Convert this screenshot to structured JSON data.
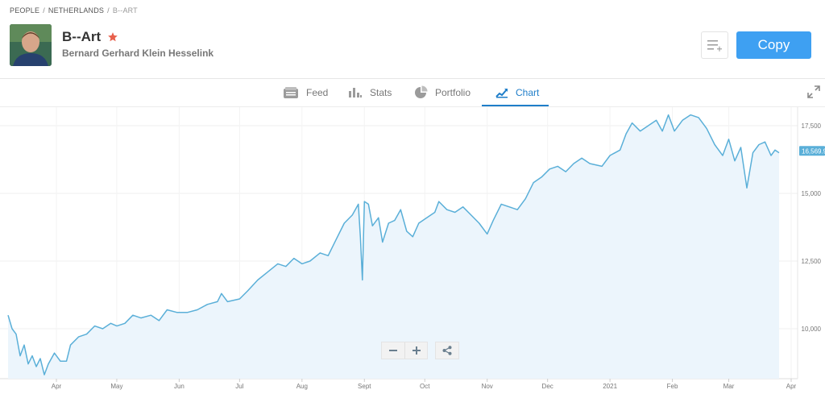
{
  "breadcrumb": [
    "PEOPLE",
    "NETHERLANDS",
    "B--ART"
  ],
  "profile": {
    "username": "B--Art",
    "full_name": "Bernard Gerhard Klein Hesselink",
    "star_color": "#e8604c"
  },
  "actions": {
    "copy_label": "Copy",
    "copy_color": "#3ea0f2"
  },
  "tabs": [
    {
      "label": "Feed",
      "icon": "feed-icon"
    },
    {
      "label": "Stats",
      "icon": "stats-icon"
    },
    {
      "label": "Portfolio",
      "icon": "portfolio-icon"
    },
    {
      "label": "Chart",
      "icon": "chart-icon",
      "active": true
    }
  ],
  "chart_data": {
    "type": "area",
    "line_color": "#5aafd8",
    "fill_color": "#ecf5fc",
    "y_ticks": [
      {
        "value": 10000,
        "label": "10,000"
      },
      {
        "value": 12500,
        "label": "12,500"
      },
      {
        "value": 15000,
        "label": "15,000"
      },
      {
        "value": 17500,
        "label": "17,500"
      }
    ],
    "current_value": {
      "value": 16569.9,
      "label": "16,569.9"
    },
    "x_ticks": [
      {
        "date": "2020-04-01",
        "label": "Apr"
      },
      {
        "date": "2020-05-01",
        "label": "May"
      },
      {
        "date": "2020-06-01",
        "label": "Jun"
      },
      {
        "date": "2020-07-01",
        "label": "Jul"
      },
      {
        "date": "2020-08-01",
        "label": "Aug"
      },
      {
        "date": "2020-09-01",
        "label": "Sept"
      },
      {
        "date": "2020-10-01",
        "label": "Oct"
      },
      {
        "date": "2020-11-01",
        "label": "Nov"
      },
      {
        "date": "2020-12-01",
        "label": "Dec"
      },
      {
        "date": "2021-01-01",
        "label": "2021"
      },
      {
        "date": "2021-02-01",
        "label": "Feb"
      },
      {
        "date": "2021-03-01",
        "label": "Mar"
      },
      {
        "date": "2021-04-01",
        "label": "Apr"
      }
    ],
    "series": [
      {
        "values": [
          [
            "2020-03-08",
            10500
          ],
          [
            "2020-03-10",
            10000
          ],
          [
            "2020-03-12",
            9800
          ],
          [
            "2020-03-14",
            9000
          ],
          [
            "2020-03-16",
            9400
          ],
          [
            "2020-03-18",
            8700
          ],
          [
            "2020-03-20",
            9000
          ],
          [
            "2020-03-22",
            8600
          ],
          [
            "2020-03-24",
            8900
          ],
          [
            "2020-03-26",
            8300
          ],
          [
            "2020-03-28",
            8700
          ],
          [
            "2020-03-31",
            9100
          ],
          [
            "2020-04-03",
            8800
          ],
          [
            "2020-04-06",
            8800
          ],
          [
            "2020-04-08",
            9400
          ],
          [
            "2020-04-12",
            9700
          ],
          [
            "2020-04-16",
            9800
          ],
          [
            "2020-04-20",
            10100
          ],
          [
            "2020-04-24",
            10000
          ],
          [
            "2020-04-28",
            10200
          ],
          [
            "2020-05-01",
            10100
          ],
          [
            "2020-05-05",
            10200
          ],
          [
            "2020-05-09",
            10500
          ],
          [
            "2020-05-13",
            10400
          ],
          [
            "2020-05-18",
            10500
          ],
          [
            "2020-05-22",
            10300
          ],
          [
            "2020-05-26",
            10700
          ],
          [
            "2020-05-31",
            10600
          ],
          [
            "2020-06-05",
            10600
          ],
          [
            "2020-06-10",
            10700
          ],
          [
            "2020-06-15",
            10900
          ],
          [
            "2020-06-20",
            11000
          ],
          [
            "2020-06-22",
            11300
          ],
          [
            "2020-06-25",
            11000
          ],
          [
            "2020-07-01",
            11100
          ],
          [
            "2020-07-05",
            11400
          ],
          [
            "2020-07-10",
            11800
          ],
          [
            "2020-07-15",
            12100
          ],
          [
            "2020-07-20",
            12400
          ],
          [
            "2020-07-24",
            12300
          ],
          [
            "2020-07-28",
            12600
          ],
          [
            "2020-08-01",
            12400
          ],
          [
            "2020-08-05",
            12500
          ],
          [
            "2020-08-10",
            12800
          ],
          [
            "2020-08-14",
            12700
          ],
          [
            "2020-08-18",
            13300
          ],
          [
            "2020-08-22",
            13900
          ],
          [
            "2020-08-26",
            14200
          ],
          [
            "2020-08-29",
            14600
          ],
          [
            "2020-08-30",
            13400
          ],
          [
            "2020-08-31",
            11800
          ],
          [
            "2020-09-01",
            14700
          ],
          [
            "2020-09-03",
            14600
          ],
          [
            "2020-09-05",
            13800
          ],
          [
            "2020-09-08",
            14100
          ],
          [
            "2020-09-10",
            13200
          ],
          [
            "2020-09-13",
            13900
          ],
          [
            "2020-09-16",
            14000
          ],
          [
            "2020-09-19",
            14400
          ],
          [
            "2020-09-22",
            13600
          ],
          [
            "2020-09-25",
            13400
          ],
          [
            "2020-09-28",
            13900
          ],
          [
            "2020-10-02",
            14100
          ],
          [
            "2020-10-06",
            14300
          ],
          [
            "2020-10-08",
            14700
          ],
          [
            "2020-10-12",
            14400
          ],
          [
            "2020-10-16",
            14300
          ],
          [
            "2020-10-20",
            14500
          ],
          [
            "2020-10-24",
            14200
          ],
          [
            "2020-10-28",
            13900
          ],
          [
            "2020-11-01",
            13500
          ],
          [
            "2020-11-04",
            14000
          ],
          [
            "2020-11-08",
            14600
          ],
          [
            "2020-11-12",
            14500
          ],
          [
            "2020-11-16",
            14400
          ],
          [
            "2020-11-20",
            14800
          ],
          [
            "2020-11-24",
            15400
          ],
          [
            "2020-11-28",
            15600
          ],
          [
            "2020-12-02",
            15900
          ],
          [
            "2020-12-06",
            16000
          ],
          [
            "2020-12-10",
            15800
          ],
          [
            "2020-12-14",
            16100
          ],
          [
            "2020-12-18",
            16300
          ],
          [
            "2020-12-22",
            16100
          ],
          [
            "2020-12-28",
            16000
          ],
          [
            "2021-01-01",
            16400
          ],
          [
            "2021-01-06",
            16600
          ],
          [
            "2021-01-09",
            17200
          ],
          [
            "2021-01-12",
            17600
          ],
          [
            "2021-01-16",
            17300
          ],
          [
            "2021-01-20",
            17500
          ],
          [
            "2021-01-24",
            17700
          ],
          [
            "2021-01-27",
            17300
          ],
          [
            "2021-01-30",
            17900
          ],
          [
            "2021-02-02",
            17300
          ],
          [
            "2021-02-06",
            17700
          ],
          [
            "2021-02-10",
            17900
          ],
          [
            "2021-02-14",
            17800
          ],
          [
            "2021-02-18",
            17400
          ],
          [
            "2021-02-22",
            16800
          ],
          [
            "2021-02-26",
            16400
          ],
          [
            "2021-03-01",
            17000
          ],
          [
            "2021-03-04",
            16200
          ],
          [
            "2021-03-07",
            16700
          ],
          [
            "2021-03-10",
            15200
          ],
          [
            "2021-03-13",
            16500
          ],
          [
            "2021-03-16",
            16800
          ],
          [
            "2021-03-19",
            16900
          ],
          [
            "2021-03-22",
            16400
          ],
          [
            "2021-03-24",
            16600
          ],
          [
            "2021-03-26",
            16500
          ]
        ]
      }
    ]
  }
}
